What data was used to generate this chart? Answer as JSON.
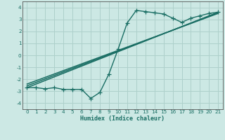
{
  "xlabel": "Humidex (Indice chaleur)",
  "xlim": [
    -0.5,
    21.5
  ],
  "ylim": [
    -4.5,
    4.5
  ],
  "background_color": "#cce8e4",
  "grid_color": "#aed0cb",
  "line_color": "#1a6e64",
  "spine_color": "#555555",
  "x_ticks": [
    0,
    1,
    2,
    3,
    4,
    5,
    6,
    7,
    8,
    9,
    10,
    11,
    12,
    13,
    14,
    15,
    16,
    17,
    18,
    19,
    20,
    21
  ],
  "y_ticks": [
    -4,
    -3,
    -2,
    -1,
    0,
    1,
    2,
    3,
    4
  ],
  "series1_x": [
    0,
    1,
    2,
    3,
    4,
    5,
    6,
    7,
    8,
    9,
    10,
    11,
    12,
    13,
    14,
    15,
    16,
    17,
    18,
    19,
    20,
    21
  ],
  "series1_y": [
    -2.7,
    -2.7,
    -2.8,
    -2.7,
    -2.85,
    -2.85,
    -2.85,
    -3.6,
    -3.1,
    -1.55,
    0.5,
    2.7,
    3.75,
    3.65,
    3.55,
    3.45,
    3.1,
    2.75,
    3.1,
    3.3,
    3.5,
    3.6
  ],
  "line1_x": [
    0,
    21
  ],
  "line1_y": [
    -2.55,
    3.55
  ],
  "line2_x": [
    0,
    21
  ],
  "line2_y": [
    -2.7,
    3.6
  ],
  "line3_x": [
    0,
    21
  ],
  "line3_y": [
    -2.4,
    3.5
  ]
}
